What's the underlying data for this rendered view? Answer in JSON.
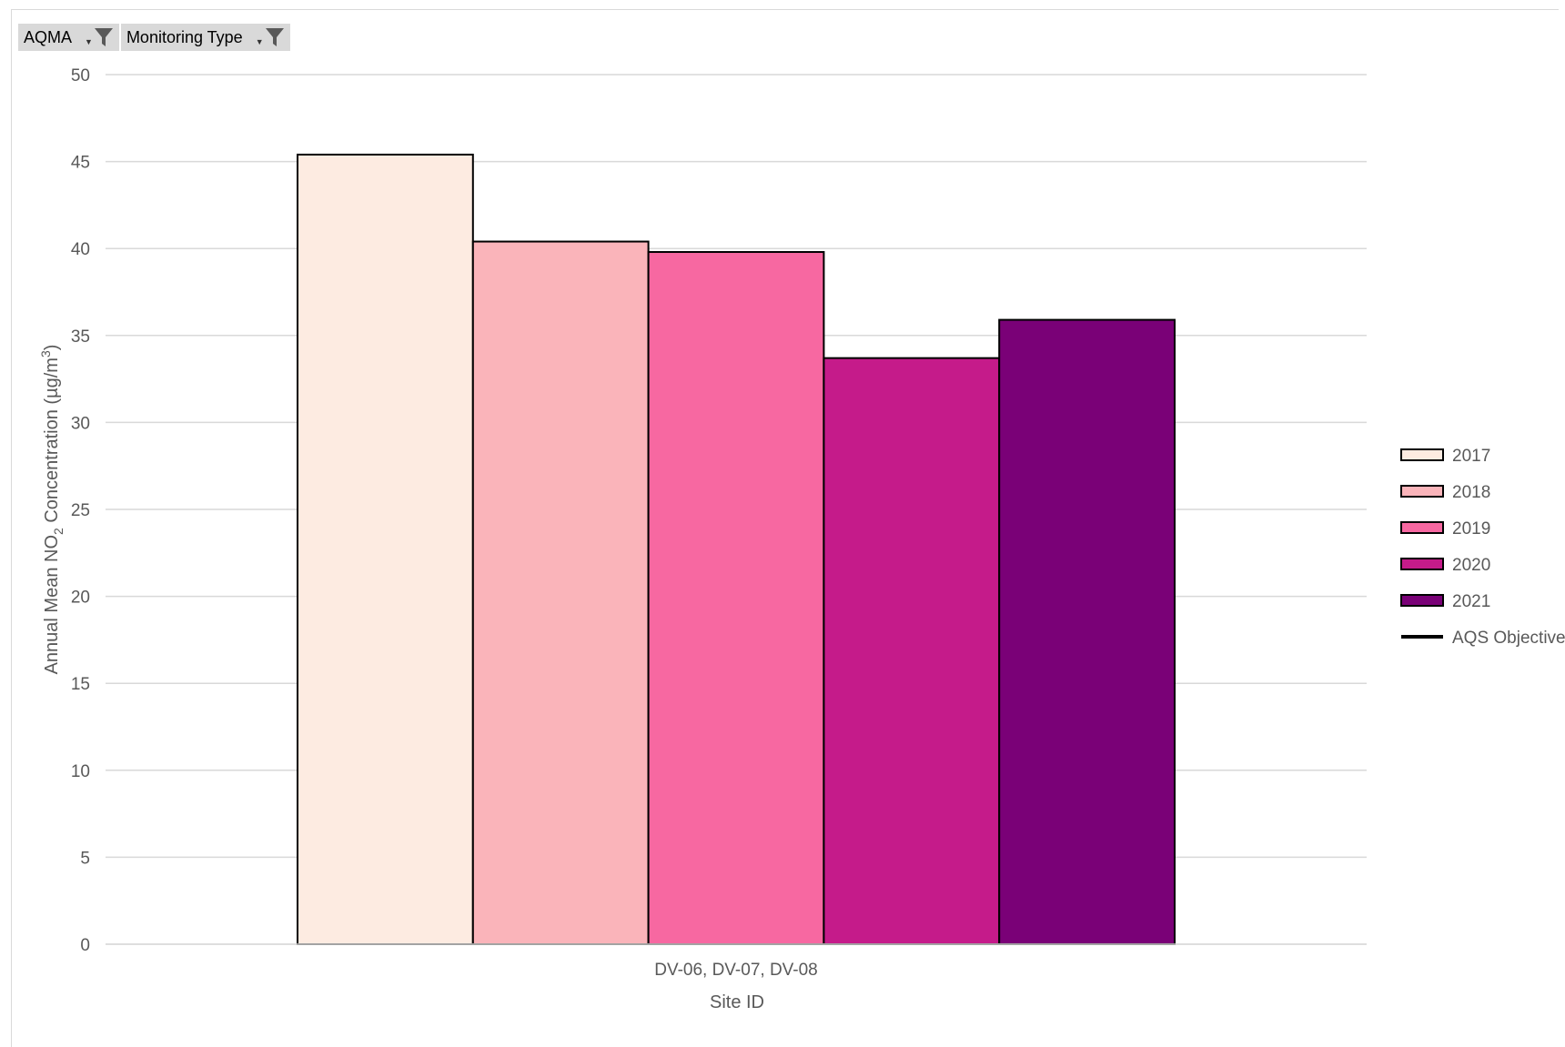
{
  "filters": [
    {
      "label": "AQMA",
      "icon": "filter-funnel-icon"
    },
    {
      "label": "Monitoring Type",
      "icon": "filter-funnel-icon"
    }
  ],
  "chart_data": {
    "type": "bar",
    "categories": [
      "DV-06, DV-07, DV-08"
    ],
    "series": [
      {
        "name": "2017",
        "values": [
          45.4
        ],
        "color": "#FDEBE1"
      },
      {
        "name": "2018",
        "values": [
          40.4
        ],
        "color": "#FAB4BA"
      },
      {
        "name": "2019",
        "values": [
          39.8
        ],
        "color": "#F768A1"
      },
      {
        "name": "2020",
        "values": [
          33.7
        ],
        "color": "#C51B8A"
      },
      {
        "name": "2021",
        "values": [
          35.9
        ],
        "color": "#7A0177"
      }
    ],
    "lines": [
      {
        "name": "AQS Objective",
        "color": "#000000"
      }
    ],
    "xlabel": "Site ID",
    "ylabel": "Annual Mean NO2 Concentration (µg/m3)",
    "ylim": [
      0,
      50
    ],
    "yticks": [
      0,
      5,
      10,
      15,
      20,
      25,
      30,
      35,
      40,
      45,
      50
    ],
    "grid": true,
    "legend_position": "right"
  }
}
